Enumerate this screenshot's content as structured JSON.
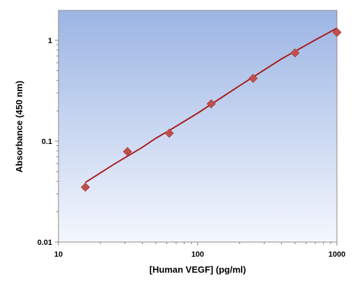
{
  "chart_data": {
    "type": "scatter",
    "xlabel": "[Human VEGF] (pg/ml)",
    "ylabel": "Absorbance (450 nm)",
    "x_scale": "log",
    "y_scale": "log",
    "xlim": [
      10,
      1000
    ],
    "ylim": [
      0.01,
      2
    ],
    "x_ticks": [
      "10",
      "100",
      "1000"
    ],
    "y_ticks": [
      "0.01",
      "0.1",
      "1"
    ],
    "grid": false,
    "legend": "none",
    "points": [
      {
        "x": 15.6,
        "y": 0.035
      },
      {
        "x": 31.3,
        "y": 0.079
      },
      {
        "x": 62.5,
        "y": 0.12
      },
      {
        "x": 125,
        "y": 0.235
      },
      {
        "x": 250,
        "y": 0.42
      },
      {
        "x": 500,
        "y": 0.75
      },
      {
        "x": 1000,
        "y": 1.2
      }
    ],
    "fit_curve": {
      "x": [
        15.6,
        25,
        40,
        50,
        62.5,
        100,
        200,
        400,
        700,
        1000
      ],
      "y": [
        0.039,
        0.059,
        0.087,
        0.107,
        0.128,
        0.19,
        0.355,
        0.655,
        1.01,
        1.32
      ]
    },
    "colors": {
      "marker": "#c0504d",
      "fit_line": "#a81c1c",
      "plot_bg_top": "#9cb5e4",
      "plot_bg_bottom": "#f4f7fd"
    }
  }
}
